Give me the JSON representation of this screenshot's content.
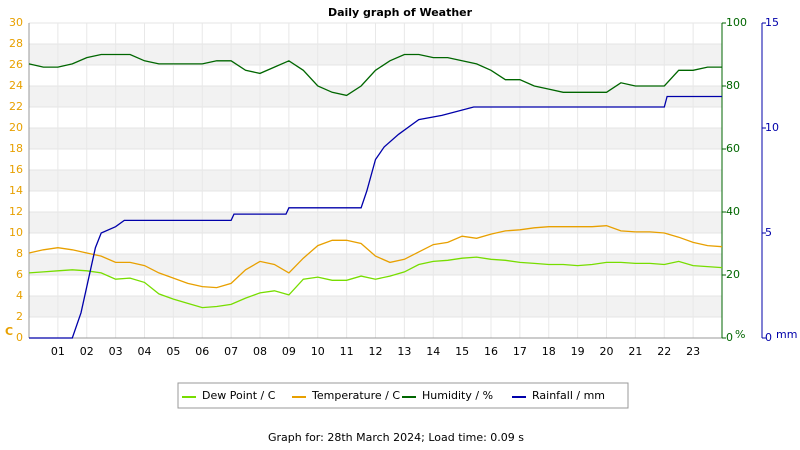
{
  "chart_data": {
    "type": "line",
    "title": "Daily graph of Weather",
    "footer": "Graph for: 28th March 2024; Load time: 0.09 s",
    "y_label": "C",
    "y2_label": "%",
    "y3_label": "mm",
    "xlim": [
      0,
      24
    ],
    "xticks": [
      {
        "value": 1,
        "label": "01"
      },
      {
        "value": 2,
        "label": "02"
      },
      {
        "value": 3,
        "label": "03"
      },
      {
        "value": 4,
        "label": "04"
      },
      {
        "value": 5,
        "label": "05"
      },
      {
        "value": 6,
        "label": "06"
      },
      {
        "value": 7,
        "label": "07"
      },
      {
        "value": 8,
        "label": "08"
      },
      {
        "value": 9,
        "label": "09"
      },
      {
        "value": 10,
        "label": "10"
      },
      {
        "value": 11,
        "label": "11"
      },
      {
        "value": 12,
        "label": "12"
      },
      {
        "value": 13,
        "label": "13"
      },
      {
        "value": 14,
        "label": "14"
      },
      {
        "value": 15,
        "label": "15"
      },
      {
        "value": 16,
        "label": "16"
      },
      {
        "value": 17,
        "label": "17"
      },
      {
        "value": 18,
        "label": "18"
      },
      {
        "value": 19,
        "label": "19"
      },
      {
        "value": 20,
        "label": "20"
      },
      {
        "value": 21,
        "label": "21"
      },
      {
        "value": 22,
        "label": "22"
      },
      {
        "value": 23,
        "label": "23"
      }
    ],
    "ylim": [
      0,
      30
    ],
    "yticks": [
      0,
      2,
      4,
      6,
      8,
      10,
      12,
      14,
      16,
      18,
      20,
      22,
      24,
      26,
      28,
      30
    ],
    "y2lim": [
      0,
      100
    ],
    "y2ticks": [
      0,
      20,
      40,
      60,
      80,
      100
    ],
    "y3lim": [
      0,
      15
    ],
    "y3ticks": [
      0,
      5,
      10,
      15
    ],
    "x": [
      0,
      0.5,
      1,
      1.5,
      2,
      2.5,
      3,
      3.5,
      4,
      4.5,
      5,
      5.5,
      6,
      6.5,
      7,
      7.5,
      8,
      8.5,
      9,
      9.5,
      10,
      10.5,
      11,
      11.5,
      12,
      12.5,
      13,
      13.5,
      14,
      14.5,
      15,
      15.5,
      16,
      16.5,
      17,
      17.5,
      18,
      18.5,
      19,
      19.5,
      20,
      20.5,
      21,
      21.5,
      22,
      22.5,
      23,
      23.5,
      24
    ],
    "series": [
      {
        "name": "Dew Point / C",
        "color": "#77dd00",
        "axis": "y",
        "values": [
          6.2,
          6.3,
          6.4,
          6.5,
          6.4,
          6.2,
          5.6,
          5.7,
          5.3,
          4.2,
          3.7,
          3.3,
          2.9,
          3.0,
          3.2,
          3.8,
          4.3,
          4.5,
          4.1,
          5.6,
          5.8,
          5.5,
          5.5,
          5.9,
          5.6,
          5.9,
          6.3,
          7.0,
          7.3,
          7.4,
          7.6,
          7.7,
          7.5,
          7.4,
          7.2,
          7.1,
          7.0,
          7.0,
          6.9,
          7.0,
          7.2,
          7.2,
          7.1,
          7.1,
          7.0,
          7.3,
          6.9,
          6.8,
          6.7
        ]
      },
      {
        "name": "Temperature / C",
        "color": "#e8a000",
        "axis": "y",
        "values": [
          8.1,
          8.4,
          8.6,
          8.4,
          8.1,
          7.8,
          7.2,
          7.2,
          6.9,
          6.2,
          5.7,
          5.2,
          4.9,
          4.8,
          5.2,
          6.5,
          7.3,
          7.0,
          6.2,
          7.6,
          8.8,
          9.3,
          9.3,
          9.0,
          7.8,
          7.2,
          7.5,
          8.2,
          8.9,
          9.1,
          9.7,
          9.5,
          9.9,
          10.2,
          10.3,
          10.5,
          10.6,
          10.6,
          10.6,
          10.6,
          10.7,
          10.2,
          10.1,
          10.1,
          10.0,
          9.6,
          9.1,
          8.8,
          8.7
        ]
      },
      {
        "name": "Humidity / %",
        "color": "#006600",
        "axis": "y2",
        "values": [
          87,
          86,
          86,
          87,
          89,
          90,
          90,
          90,
          88,
          87,
          87,
          87,
          87,
          88,
          88,
          85,
          84,
          86,
          88,
          85,
          80,
          78,
          77,
          80,
          85,
          88,
          90,
          90,
          89,
          89,
          88,
          87,
          85,
          82,
          82,
          80,
          79,
          78,
          78,
          78,
          78,
          81,
          80,
          80,
          80,
          85,
          85,
          86,
          86
        ]
      },
      {
        "name": "Rainfall / mm",
        "color": "#0000aa",
        "axis": "y3",
        "x": [
          0,
          1.5,
          1.8,
          2.3,
          2.5,
          3,
          3.3,
          7,
          7.1,
          8.9,
          9,
          11.5,
          11.7,
          12,
          12.3,
          12.8,
          13.5,
          14.3,
          15.4,
          22,
          22.1,
          24
        ],
        "values": [
          0,
          0,
          1.2,
          4.3,
          5,
          5.3,
          5.6,
          5.6,
          5.9,
          5.9,
          6.2,
          6.2,
          7.0,
          8.5,
          9.1,
          9.7,
          10.4,
          10.6,
          11.0,
          11.0,
          11.5,
          11.5
        ]
      }
    ]
  }
}
